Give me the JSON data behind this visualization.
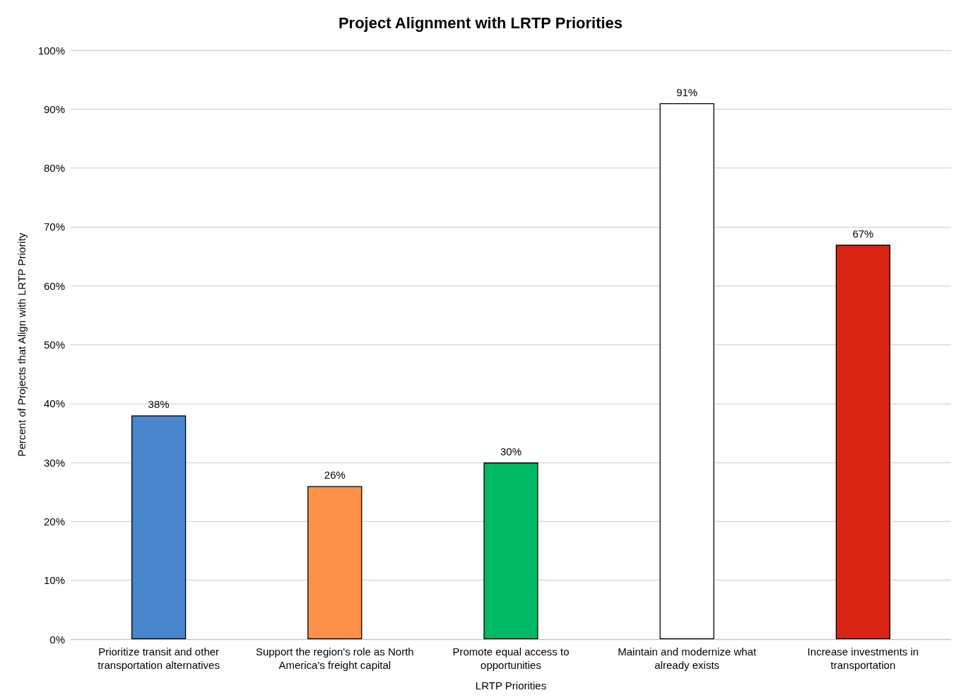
{
  "chart_data": {
    "type": "bar",
    "title": "Project Alignment with LRTP Priorities",
    "xlabel": "LRTP Priorities",
    "ylabel": "Percent of Projects that Align with LRTP Priority",
    "categories": [
      "Prioritize transit and other transportation alternatives",
      "Support the region's role as North America's freight capital",
      "Promote equal access to opportunities",
      "Maintain and modernize what already exists",
      "Increase investments in transportation"
    ],
    "values": [
      38,
      26,
      30,
      91,
      67
    ],
    "colors": [
      "#4a86cc",
      "#fd914a",
      "#00b964",
      "#ffffff",
      "#da2413"
    ],
    "value_labels": [
      "38%",
      "26%",
      "30%",
      "91%",
      "67%"
    ],
    "ylim": [
      0,
      100
    ],
    "yticks": [
      {
        "value": 0,
        "label": "0%"
      },
      {
        "value": 10,
        "label": "10%"
      },
      {
        "value": 20,
        "label": "20%"
      },
      {
        "value": 30,
        "label": "30%"
      },
      {
        "value": 40,
        "label": "40%"
      },
      {
        "value": 50,
        "label": "50%"
      },
      {
        "value": 60,
        "label": "60%"
      },
      {
        "value": 70,
        "label": "70%"
      },
      {
        "value": 80,
        "label": "80%"
      },
      {
        "value": 90,
        "label": "90%"
      },
      {
        "value": 100,
        "label": "100%"
      }
    ],
    "grid": "y"
  }
}
